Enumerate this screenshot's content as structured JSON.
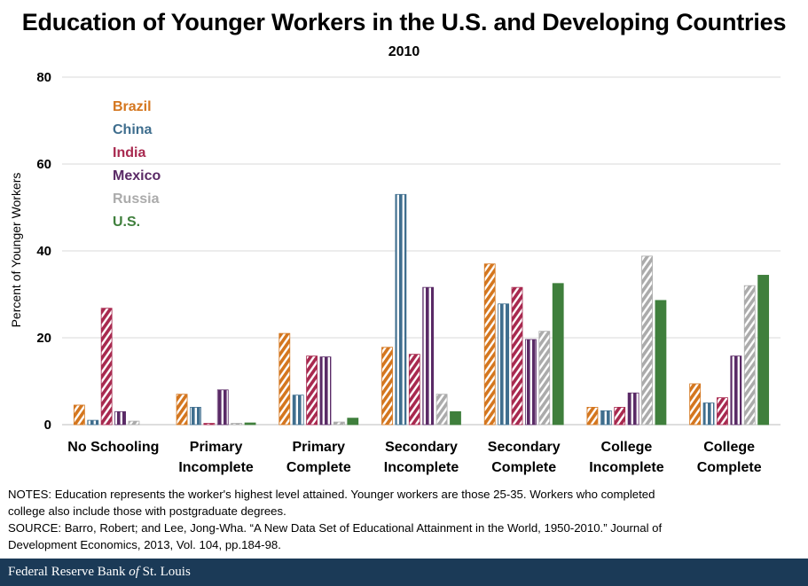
{
  "chart_data": {
    "type": "bar",
    "title": "Education of Younger Workers in the U.S. and Developing Countries",
    "subtitle": "2010",
    "ylabel": "Percent of Younger Workers",
    "xlabel": "",
    "ylim": [
      0,
      80
    ],
    "yticks": [
      0,
      20,
      40,
      60,
      80
    ],
    "grid": true,
    "legend_position": "top-left",
    "categories": [
      [
        "No Schooling"
      ],
      [
        "Primary",
        "Incomplete"
      ],
      [
        "Primary",
        "Complete"
      ],
      [
        "Secondary",
        "Incomplete"
      ],
      [
        "Secondary",
        "Complete"
      ],
      [
        "College",
        "Incomplete"
      ],
      [
        "College",
        "Complete"
      ]
    ],
    "series": [
      {
        "name": "Brazil",
        "color": "#d4761e",
        "pattern": "hatched",
        "values": [
          4.5,
          7,
          21,
          17.8,
          37,
          4,
          9.4
        ]
      },
      {
        "name": "China",
        "color": "#3f6e8e",
        "pattern": "striped",
        "values": [
          1,
          4,
          6.8,
          53,
          27.8,
          3.2,
          5
        ]
      },
      {
        "name": "India",
        "color": "#a8294f",
        "pattern": "hatched",
        "values": [
          26.8,
          0.3,
          15.8,
          16.2,
          31.6,
          4,
          6.2
        ]
      },
      {
        "name": "Mexico",
        "color": "#5a2a66",
        "pattern": "striped",
        "values": [
          3,
          8,
          15.6,
          31.6,
          19.6,
          7.3,
          15.8
        ]
      },
      {
        "name": "Russia",
        "color": "#ababab",
        "pattern": "hatched",
        "values": [
          0.8,
          0.3,
          0.6,
          7,
          21.5,
          38.8,
          32
        ]
      },
      {
        "name": "U.S.",
        "color": "#3f7f3c",
        "pattern": "solid",
        "values": [
          0,
          0.4,
          1.5,
          3,
          32.5,
          28.6,
          34.4
        ]
      }
    ]
  },
  "notes": {
    "line1": "NOTES: Education represents the worker's highest level attained. Younger workers are those 25-35. Workers who completed",
    "line2": "college also include those with postgraduate degrees.",
    "line3": "SOURCE: Barro, Robert; and Lee, Jong-Wha. “A New Data Set of Educational Attainment in the World, 1950-2010.” Journal of",
    "line4": "Development Economics, 2013, Vol. 104, pp.184-98."
  },
  "footer": {
    "text_before": "Federal Reserve Bank ",
    "text_italic": "of",
    "text_after": " St. Louis"
  }
}
